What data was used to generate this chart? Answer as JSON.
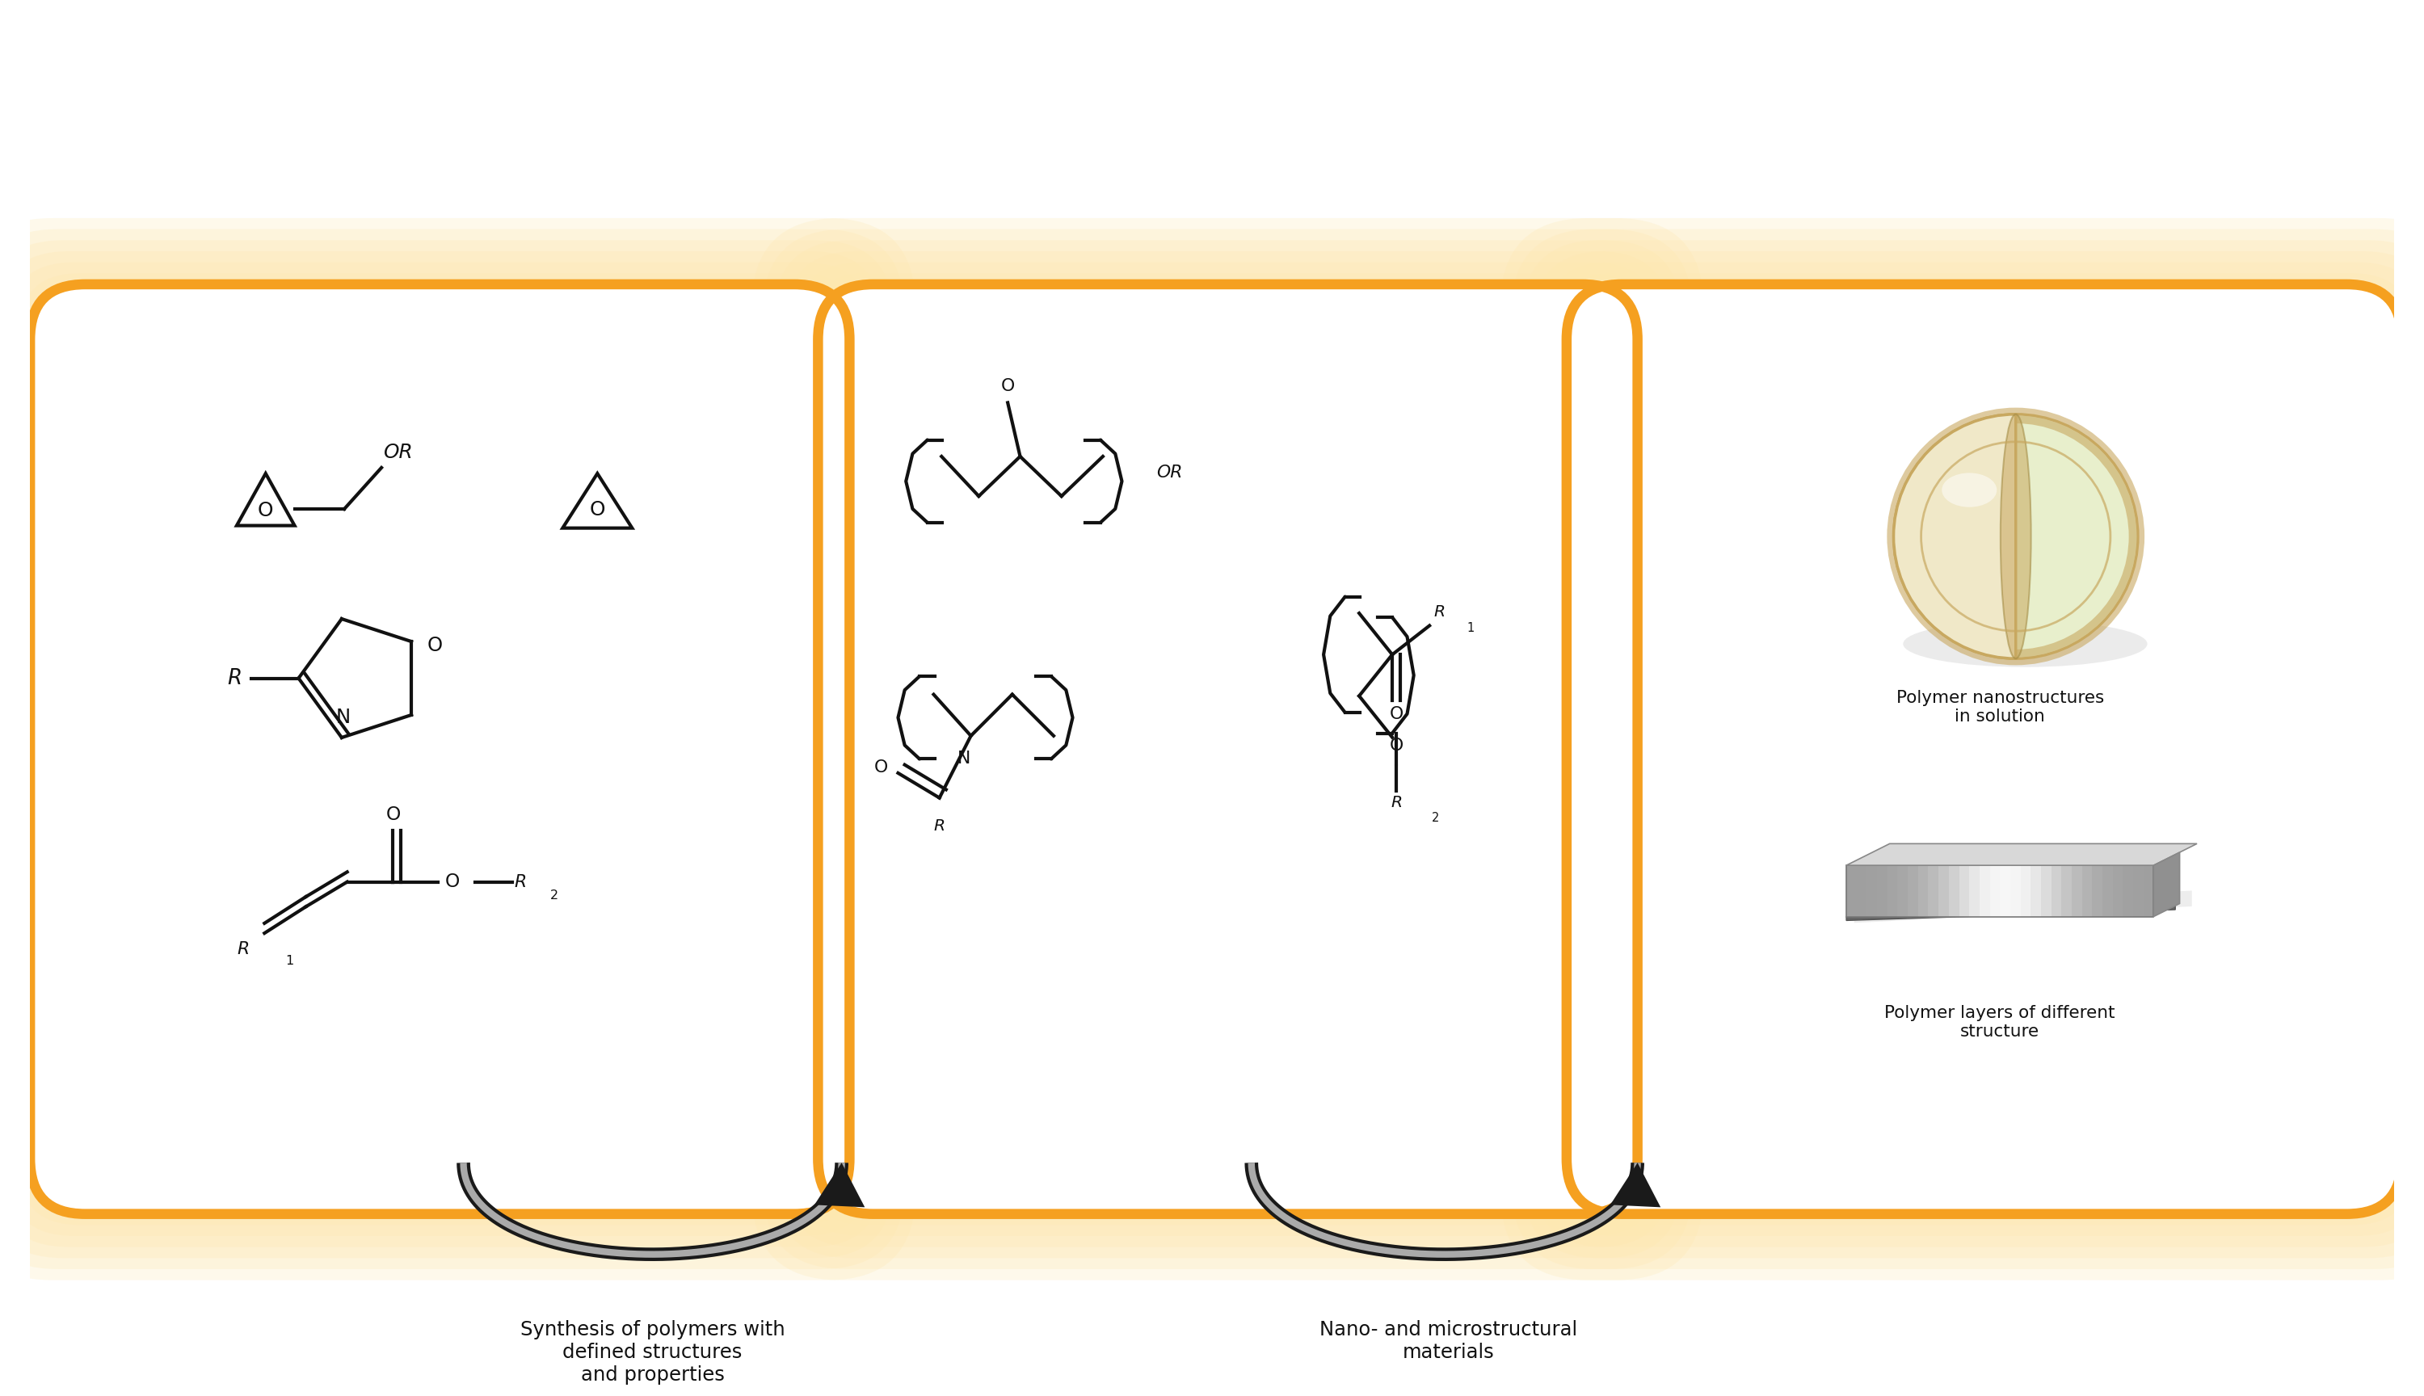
{
  "bg_color": "#ffffff",
  "orange": "#f5a020",
  "glow": "#fde8b0",
  "black": "#111111",
  "gray": "#999999",
  "label1": "Synthesis of polymers with\ndefined structures\nand properties",
  "label2": "Nano- and microstructural\nmaterials",
  "label_nano": "Polymer nanostructures\nin solution",
  "label_layer": "Polymer layers of different\nstructure",
  "cream": "#f0e8c8",
  "cream_inner": "#e8efcc",
  "tan": "#c8a860",
  "tan_dark": "#a08840"
}
